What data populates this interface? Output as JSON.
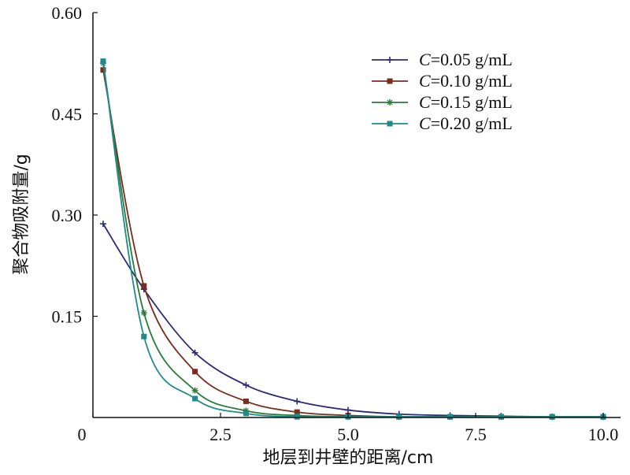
{
  "chart_data": {
    "type": "line",
    "title": "",
    "xlabel": "地层到井壁的距离/cm",
    "ylabel": "聚合物吸附量/g",
    "xlim": [
      0,
      10
    ],
    "ylim": [
      0,
      0.6
    ],
    "xticks": [
      {
        "value": 0,
        "label": "0"
      },
      {
        "value": 2.5,
        "label": "2.5"
      },
      {
        "value": 5,
        "label": "5.0"
      },
      {
        "value": 7.5,
        "label": "7.5"
      },
      {
        "value": 10,
        "label": "10.0"
      }
    ],
    "yticks": [
      {
        "value": 0.15,
        "label": "0.15"
      },
      {
        "value": 0.3,
        "label": "0.30"
      },
      {
        "value": 0.45,
        "label": "0.45"
      },
      {
        "value": 0.6,
        "label": "0.60"
      }
    ],
    "grid": false,
    "legend_position": "top-right",
    "series": [
      {
        "name": "C=0.05 g/mL",
        "legend_prefix": "C",
        "legend_suffix": "=0.05 g/mL",
        "color": "#2e2a78",
        "marker": "plus",
        "points": [
          [
            0.2,
            0.287
          ],
          [
            1,
            0.19
          ],
          [
            2,
            0.096
          ],
          [
            3,
            0.048
          ],
          [
            4,
            0.024
          ],
          [
            5,
            0.011
          ],
          [
            6,
            0.005
          ],
          [
            7,
            0.003
          ],
          [
            8,
            0.002
          ],
          [
            9,
            0.001
          ],
          [
            10,
            0.001
          ]
        ]
      },
      {
        "name": "C=0.10 g/mL",
        "legend_prefix": "C",
        "legend_suffix": "=0.10 g/mL",
        "color": "#7a2c1e",
        "marker": "square",
        "points": [
          [
            0.2,
            0.515
          ],
          [
            1,
            0.195
          ],
          [
            2,
            0.068
          ],
          [
            3,
            0.024
          ],
          [
            4,
            0.008
          ],
          [
            5,
            0.003
          ],
          [
            6,
            0.001
          ],
          [
            7,
            0.001
          ],
          [
            8,
            0.001
          ],
          [
            9,
            0.001
          ],
          [
            10,
            0.001
          ]
        ]
      },
      {
        "name": "C=0.15 g/mL",
        "legend_prefix": "C",
        "legend_suffix": "=0.15 g/mL",
        "color": "#2a7a3a",
        "marker": "star",
        "points": [
          [
            0.2,
            0.525
          ],
          [
            1,
            0.155
          ],
          [
            2,
            0.04
          ],
          [
            3,
            0.01
          ],
          [
            4,
            0.003
          ],
          [
            5,
            0.001
          ],
          [
            6,
            0.001
          ],
          [
            7,
            0.001
          ],
          [
            8,
            0.001
          ],
          [
            9,
            0.001
          ],
          [
            10,
            0.001
          ]
        ]
      },
      {
        "name": "C=0.20 g/mL",
        "legend_prefix": "C",
        "legend_suffix": "=0.20 g/mL",
        "color": "#1f8a8a",
        "marker": "square",
        "points": [
          [
            0.2,
            0.528
          ],
          [
            1,
            0.12
          ],
          [
            2,
            0.028
          ],
          [
            3,
            0.006
          ],
          [
            4,
            0.001
          ],
          [
            5,
            0.001
          ],
          [
            6,
            0.001
          ],
          [
            7,
            0.001
          ],
          [
            8,
            0.001
          ],
          [
            9,
            0.001
          ],
          [
            10,
            0.001
          ]
        ]
      }
    ]
  }
}
